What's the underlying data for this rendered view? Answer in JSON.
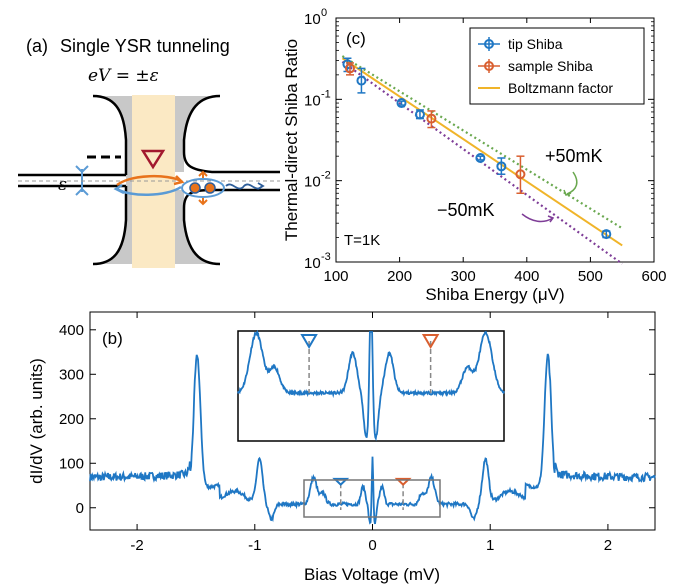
{
  "panel_a": {
    "label": "(a)",
    "title": "Single YSR tunneling",
    "equation": "eV = ±ε",
    "epsilon": "ε"
  },
  "chart_data": [
    {
      "id": "c",
      "type": "scatter",
      "panel_label": "(c)",
      "title": "",
      "xlabel": "Shiba Energy (μV)",
      "ylabel": "Thermal-direct Shiba Ratio",
      "xlim": [
        100,
        600
      ],
      "ylim": [
        0.001,
        1
      ],
      "yscale": "log",
      "xticks": [
        100,
        200,
        300,
        400,
        500,
        600
      ],
      "yticks": [
        {
          "value": 0.001,
          "base": "10",
          "exp": "-3"
        },
        {
          "value": 0.01,
          "base": "10",
          "exp": "-2"
        },
        {
          "value": 0.1,
          "base": "10",
          "exp": "-1"
        },
        {
          "value": 1,
          "base": "10",
          "exp": "0"
        }
      ],
      "legend_position": "top-right",
      "grid": false,
      "annotation": "T=1K",
      "offset_labels": [
        "+50mK",
        "−50mK"
      ],
      "series": [
        {
          "name": "tip Shiba",
          "kind": "errorbar",
          "color": "#1f77c4",
          "points": [
            {
              "x": 118,
              "y": 0.27,
              "lo": 0.22,
              "hi": 0.32
            },
            {
              "x": 140,
              "y": 0.17,
              "lo": 0.12,
              "hi": 0.24
            },
            {
              "x": 203,
              "y": 0.09,
              "lo": 0.085,
              "hi": 0.095
            },
            {
              "x": 232,
              "y": 0.065,
              "lo": 0.058,
              "hi": 0.074
            },
            {
              "x": 327,
              "y": 0.019,
              "lo": 0.018,
              "hi": 0.02
            },
            {
              "x": 360,
              "y": 0.015,
              "lo": 0.012,
              "hi": 0.019
            },
            {
              "x": 525,
              "y": 0.0022,
              "lo": 0.002,
              "hi": 0.0024
            }
          ]
        },
        {
          "name": "sample Shiba",
          "kind": "errorbar",
          "color": "#d95f30",
          "points": [
            {
              "x": 122,
              "y": 0.24,
              "lo": 0.2,
              "hi": 0.28
            },
            {
              "x": 250,
              "y": 0.058,
              "lo": 0.045,
              "hi": 0.072
            },
            {
              "x": 390,
              "y": 0.012,
              "lo": 0.007,
              "hi": 0.02
            }
          ]
        },
        {
          "name": "Boltzmann factor",
          "kind": "line",
          "color": "#f0b429",
          "x": [
            110,
            550
          ],
          "y": [
            0.32,
            0.0016
          ]
        },
        {
          "name": "",
          "kind": "dotted",
          "color": "#6aa84f",
          "x": [
            110,
            550
          ],
          "y": [
            0.34,
            0.0026
          ]
        },
        {
          "name": "",
          "kind": "dotted",
          "color": "#7e3d97",
          "x": [
            110,
            550
          ],
          "y": [
            0.29,
            0.00095
          ]
        }
      ]
    },
    {
      "id": "b",
      "type": "line",
      "panel_label": "(b)",
      "title": "",
      "xlabel": "Bias Voltage (mV)",
      "ylabel": "dI/dV (arb. units)",
      "xlim": [
        -2.4,
        2.4
      ],
      "ylim": [
        -50,
        440
      ],
      "xticks": [
        -2,
        -1,
        0,
        1,
        2
      ],
      "yticks": [
        0,
        100,
        200,
        300,
        400
      ],
      "grid": false,
      "marker_x": [
        -0.27,
        0.26
      ],
      "marker_colors": [
        "#1f77c4",
        "#d95f30"
      ],
      "inset_range": {
        "x": [
          -0.58,
          0.58
        ],
        "y": [
          -40,
          70
        ]
      },
      "series": [
        {
          "name": "",
          "color": "#1f77c4"
        }
      ]
    }
  ]
}
